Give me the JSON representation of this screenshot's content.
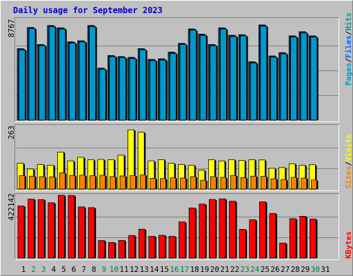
{
  "title": "Daily usage for September 2023",
  "colors": {
    "background": "#c0c0c0",
    "pages": "#0099cc",
    "files": "#0066ff",
    "hits": "#009999",
    "sites": "#ff8000",
    "visits": "#ffff00",
    "kbytes": "#ff0000",
    "weekend_label": "#008040",
    "weekday_label": "#000000"
  },
  "legend_right_top": {
    "pages": "Pages",
    "files": "Files",
    "hits": "Hits",
    "sep": "/"
  },
  "legend_right_mid": {
    "sites": "Sites",
    "visits": "Visits",
    "sep": "/"
  },
  "legend_right_bot": {
    "kbytes": "KBytes"
  },
  "chart_data": [
    {
      "type": "bar",
      "panel": "top",
      "ytick_label": "8767",
      "ylim": [
        0,
        8767
      ],
      "categories": [
        "1",
        "2",
        "3",
        "4",
        "5",
        "6",
        "7",
        "8",
        "9",
        "10",
        "11",
        "12",
        "13",
        "14",
        "15",
        "16",
        "17",
        "18",
        "19",
        "20",
        "21",
        "22",
        "23",
        "24",
        "25",
        "26",
        "27",
        "28",
        "29",
        "30",
        "31"
      ],
      "series": [
        {
          "name": "Hits",
          "values": [
            6220,
            8060,
            6580,
            8230,
            8030,
            6810,
            6900,
            8230,
            4520,
            5620,
            5530,
            5460,
            6220,
            5280,
            5330,
            5910,
            6680,
            7930,
            7480,
            6580,
            8030,
            7380,
            7430,
            5080,
            8280,
            5580,
            5870,
            7330,
            7690,
            7330,
            0
          ]
        },
        {
          "name": "Files",
          "values": [
            6170,
            8010,
            6530,
            8180,
            7980,
            6760,
            6850,
            8180,
            4470,
            5570,
            5480,
            5410,
            6170,
            5230,
            5280,
            5860,
            6630,
            7880,
            7430,
            6530,
            7980,
            7330,
            7380,
            5030,
            8230,
            5530,
            5820,
            7280,
            7640,
            7280,
            0
          ]
        },
        {
          "name": "Pages",
          "values": [
            6100,
            7950,
            6470,
            8120,
            7920,
            6700,
            6790,
            8120,
            4410,
            5510,
            5420,
            5350,
            6110,
            5170,
            5220,
            5800,
            6570,
            7820,
            7370,
            6470,
            7920,
            7270,
            7320,
            4970,
            8170,
            5470,
            5760,
            7220,
            7580,
            7220,
            0
          ]
        }
      ]
    },
    {
      "type": "bar",
      "panel": "middle",
      "ytick_label": "263",
      "ylim": [
        0,
        263
      ],
      "categories": [
        "1",
        "2",
        "3",
        "4",
        "5",
        "6",
        "7",
        "8",
        "9",
        "10",
        "11",
        "12",
        "13",
        "14",
        "15",
        "16",
        "17",
        "18",
        "19",
        "20",
        "21",
        "22",
        "23",
        "24",
        "25",
        "26",
        "27",
        "28",
        "29",
        "30",
        "31"
      ],
      "series": [
        {
          "name": "Visits",
          "values": [
            108,
            84,
            103,
            100,
            155,
            118,
            133,
            123,
            124,
            123,
            142,
            248,
            238,
            118,
            123,
            108,
            103,
            100,
            79,
            123,
            118,
            123,
            120,
            123,
            122,
            87,
            90,
            106,
            100,
            102,
            0
          ]
        },
        {
          "name": "Sites",
          "values": [
            56,
            54,
            52,
            51,
            68,
            57,
            58,
            56,
            58,
            52,
            55,
            57,
            59,
            45,
            44,
            47,
            46,
            52,
            37,
            52,
            49,
            57,
            48,
            54,
            53,
            43,
            40,
            49,
            46,
            38,
            0
          ]
        }
      ]
    },
    {
      "type": "bar",
      "panel": "bottom",
      "ytick_label": "422142",
      "ylim": [
        0,
        422142
      ],
      "categories": [
        "1",
        "2",
        "3",
        "4",
        "5",
        "6",
        "7",
        "8",
        "9",
        "10",
        "11",
        "12",
        "13",
        "14",
        "15",
        "16",
        "17",
        "18",
        "19",
        "20",
        "21",
        "22",
        "23",
        "24",
        "25",
        "26",
        "27",
        "28",
        "29",
        "30",
        "31"
      ],
      "series": [
        {
          "name": "KBytes",
          "values": [
            350000,
            396000,
            393000,
            372000,
            422000,
            421000,
            344000,
            339000,
            118000,
            105000,
            119000,
            152000,
            194000,
            146000,
            153000,
            146000,
            243000,
            337000,
            363000,
            394000,
            398000,
            382000,
            193000,
            258000,
            378000,
            300000,
            101000,
            265000,
            281000,
            262000,
            0
          ]
        }
      ]
    }
  ],
  "weekend_days": [
    "2",
    "3",
    "9",
    "10",
    "16",
    "17",
    "23",
    "24",
    "30"
  ]
}
